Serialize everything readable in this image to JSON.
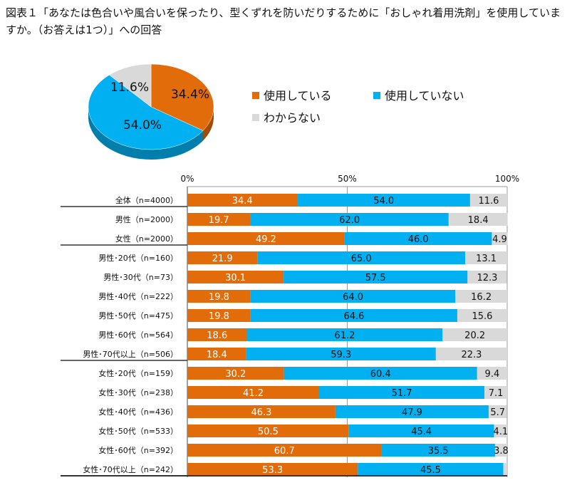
{
  "title": "図表１「あなたは色合いや風合いを保ったり、型くずれを防いだりするために「おしゃれ着用洗剤」を使用していますか。（お答えは1つ）」への回答",
  "chart_data": [
    {
      "type": "pie",
      "values": [
        34.4,
        54.0,
        11.6
      ],
      "labels": [
        "34.4%",
        "54.0%",
        "11.6%"
      ],
      "categories": [
        "使用している",
        "使用していない",
        "わからない"
      ],
      "colors": [
        "#E36C0A",
        "#00B0F0",
        "#D9D9D9"
      ],
      "legend": "right",
      "style": "3d"
    },
    {
      "type": "bar",
      "orientation": "horizontal",
      "stacked": "percent",
      "xlim": [
        0,
        100
      ],
      "ticks": [
        "0%",
        "50%",
        "100%"
      ],
      "grid": true,
      "categories": [
        "全体（n=4000）",
        "男性（n=2000）",
        "女性（n=2000）",
        "男性･20代（n=160）",
        "男性･30代（n=73）",
        "男性･40代（n=222）",
        "男性･50代（n=475）",
        "男性･60代（n=564）",
        "男性･70代以上（n=506）",
        "女性･20代（n=159）",
        "女性･30代（n=238）",
        "女性･40代（n=436）",
        "女性･50代（n=533）",
        "女性･60代（n=392）",
        "女性･70代以上（n=242）"
      ],
      "series": [
        {
          "name": "使用している",
          "color": "#E36C0A",
          "values": [
            34.4,
            19.7,
            49.2,
            21.9,
            30.1,
            19.8,
            19.8,
            18.6,
            18.4,
            30.2,
            41.2,
            46.3,
            50.5,
            60.7,
            53.3
          ]
        },
        {
          "name": "使用していない",
          "color": "#00B0F0",
          "values": [
            54.0,
            62.0,
            46.0,
            65.0,
            57.5,
            64.0,
            64.6,
            61.2,
            59.3,
            60.4,
            51.7,
            47.9,
            45.4,
            35.5,
            45.5
          ]
        },
        {
          "name": "わからない",
          "color": "#D9D9D9",
          "values": [
            11.6,
            18.4,
            4.9,
            13.1,
            12.3,
            16.2,
            15.6,
            20.2,
            22.3,
            9.4,
            7.1,
            5.7,
            4.1,
            3.8,
            1.2
          ]
        }
      ],
      "labels": [
        [
          "34.4",
          "54.0",
          "11.6"
        ],
        [
          "19.7",
          "62.0",
          "18.4"
        ],
        [
          "49.2",
          "46.0",
          "4.9"
        ],
        [
          "21.9",
          "65.0",
          "13.1"
        ],
        [
          "30.1",
          "57.5",
          "12.3"
        ],
        [
          "19.8",
          "64.0",
          "16.2"
        ],
        [
          "19.8",
          "64.6",
          "15.6"
        ],
        [
          "18.6",
          "61.2",
          "20.2"
        ],
        [
          "18.4",
          "59.3",
          "22.3"
        ],
        [
          "30.2",
          "60.4",
          "9.4"
        ],
        [
          "41.2",
          "51.7",
          "7.1"
        ],
        [
          "46.3",
          "47.9",
          "5.7"
        ],
        [
          "50.5",
          "45.4",
          "4.1"
        ],
        [
          "60.7",
          "35.5",
          "3.8"
        ],
        [
          "53.3",
          "45.5",
          ""
        ]
      ]
    }
  ]
}
